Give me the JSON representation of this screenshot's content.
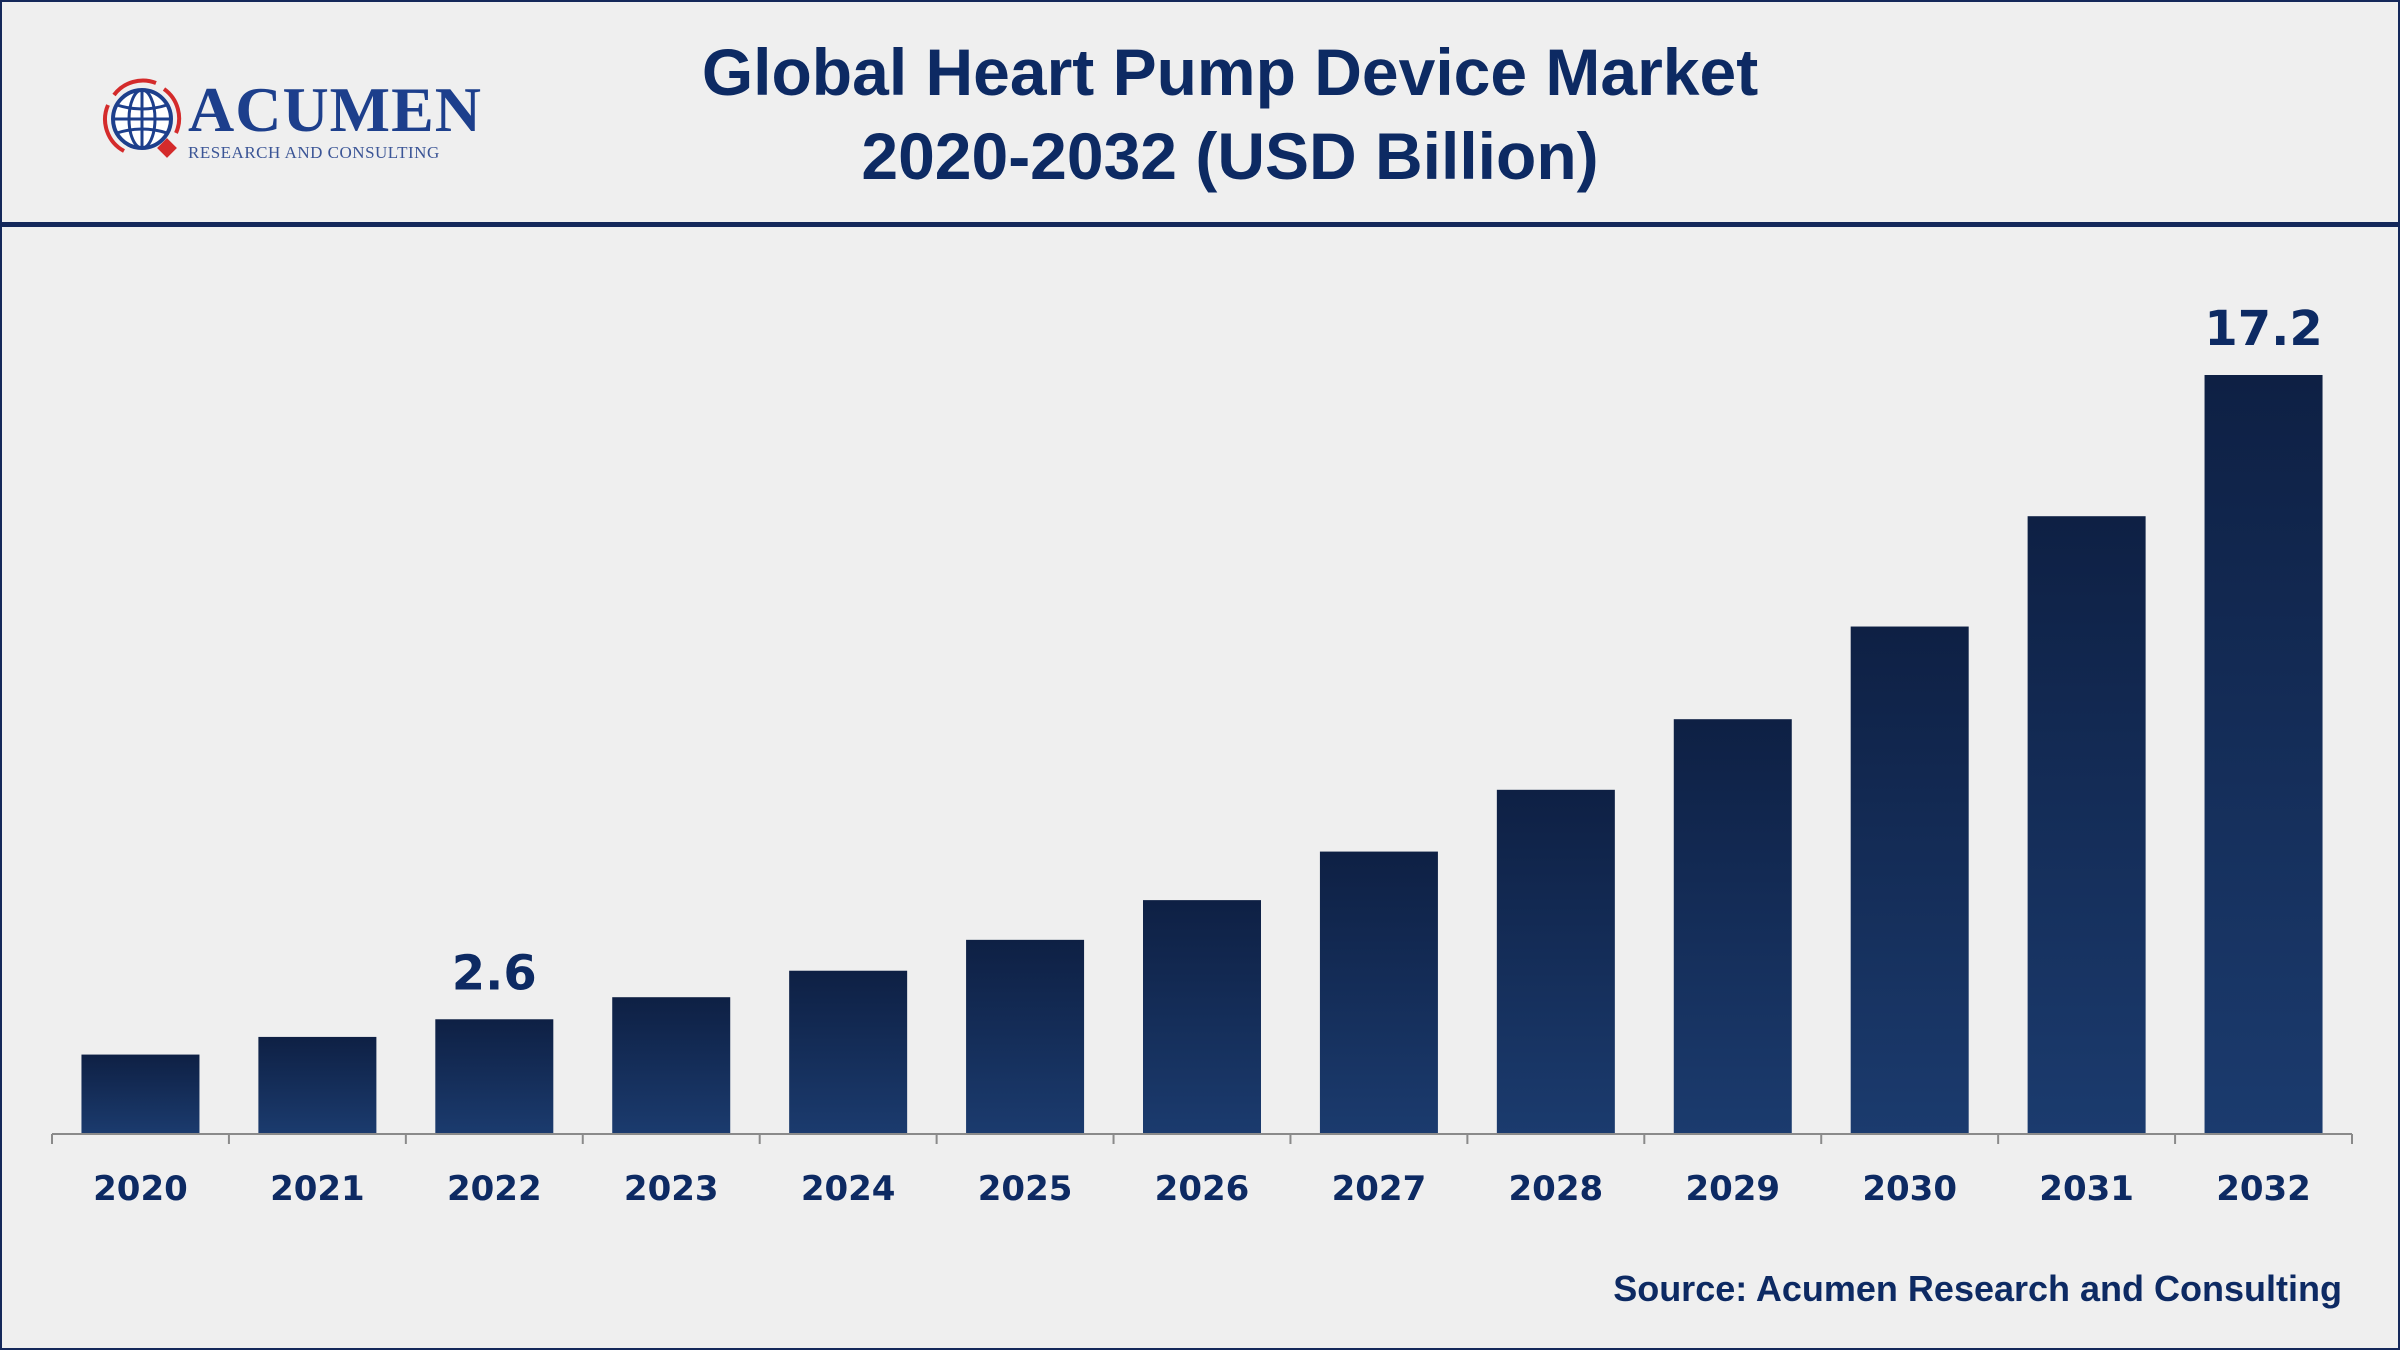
{
  "title_line1": "Global Heart Pump Device Market",
  "title_line2": "2020-2032 (USD Billion)",
  "logo": {
    "name": "ACUMEN",
    "tagline": "RESEARCH AND CONSULTING"
  },
  "source": "Source: Acumen Research and Consulting",
  "colors": {
    "title": "#0d2a63",
    "bar_top": "#0e2044",
    "bar_bottom": "#1b3b6e",
    "background": "#efefef"
  },
  "chart_data": {
    "type": "bar",
    "title": "Global Heart Pump Device Market 2020-2032 (USD Billion)",
    "categories": [
      "2020",
      "2021",
      "2022",
      "2023",
      "2024",
      "2025",
      "2026",
      "2027",
      "2028",
      "2029",
      "2030",
      "2031",
      "2032"
    ],
    "values": [
      1.8,
      2.2,
      2.6,
      3.1,
      3.7,
      4.4,
      5.3,
      6.4,
      7.8,
      9.4,
      11.5,
      14.0,
      17.2
    ],
    "data_labels": {
      "2022": "2.6",
      "2032": "17.2"
    },
    "xlabel": "",
    "ylabel": "",
    "ylim": [
      0,
      17.2
    ],
    "grid": false,
    "legend": "none"
  }
}
